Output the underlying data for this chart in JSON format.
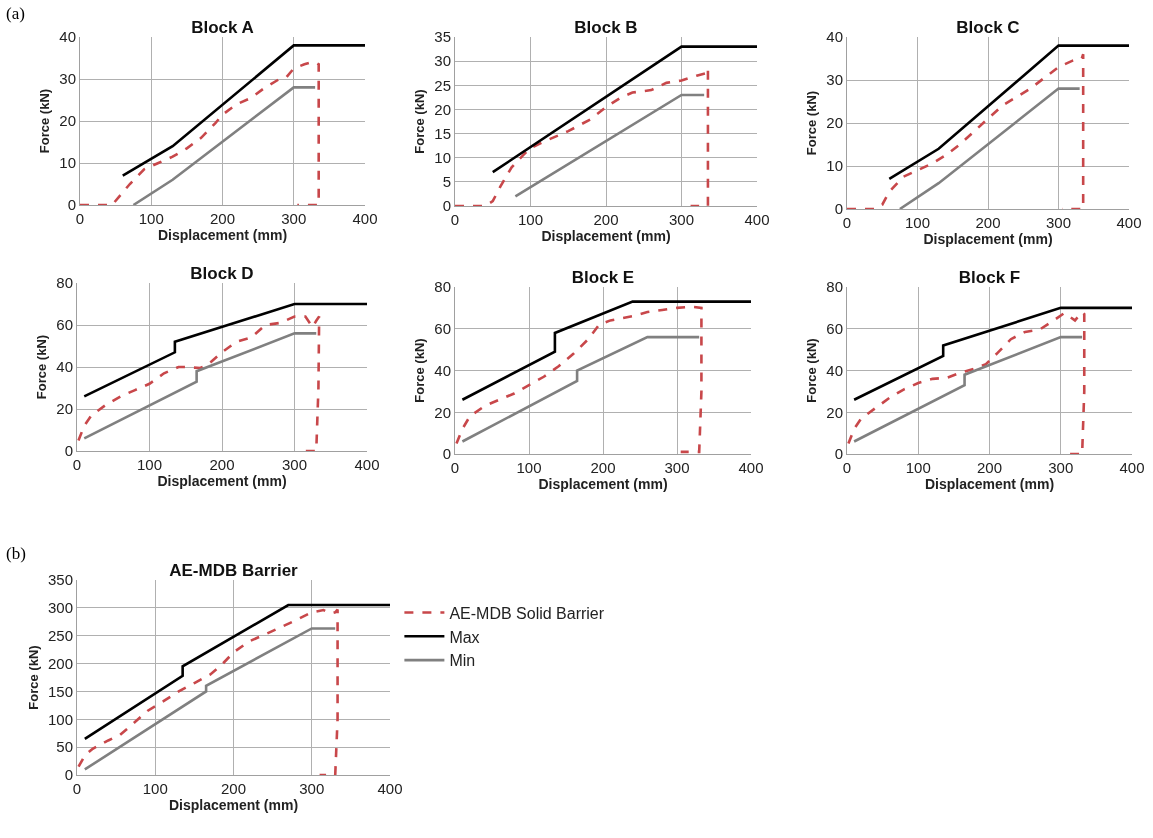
{
  "chart_data": [
    {
      "type": "line",
      "title": "Block A",
      "xlabel": "Displacement (mm)",
      "ylabel": "Force (kN)",
      "annotations": [
        "(a)"
      ],
      "xlim": [
        0,
        400
      ],
      "xticks": [
        0,
        100,
        200,
        300,
        400
      ],
      "ylim": [
        0,
        40
      ],
      "yticks": [
        0,
        10,
        20,
        30,
        40
      ],
      "grid": true,
      "series": [
        {
          "color": "#c8474a",
          "line_style": "dashed",
          "x": [
            0,
            45,
            55,
            70,
            90,
            110,
            130,
            150,
            170,
            190,
            200,
            220,
            240,
            260,
            280,
            290,
            300,
            315,
            325,
            330,
            335,
            335,
            305
          ],
          "values": [
            0,
            0,
            2,
            5,
            8.5,
            10,
            11.5,
            13.5,
            16,
            19.5,
            21.5,
            24,
            25.5,
            28,
            30,
            30.5,
            32.5,
            33.5,
            34,
            34,
            33.5,
            0,
            0
          ]
        },
        {
          "color": "#000000",
          "line_style": "solid",
          "x": [
            60,
            130,
            300,
            400
          ],
          "values": [
            7,
            14,
            38,
            38
          ]
        },
        {
          "color": "#808080",
          "line_style": "solid",
          "x": [
            75,
            130,
            300,
            330
          ],
          "values": [
            0,
            6,
            28,
            28
          ]
        }
      ]
    },
    {
      "type": "line",
      "title": "Block B",
      "xlabel": "Displacement (mm)",
      "ylabel": "Force (kN)",
      "xlim": [
        0,
        400
      ],
      "xticks": [
        0,
        100,
        200,
        300,
        400
      ],
      "ylim": [
        0,
        35
      ],
      "yticks": [
        0,
        5,
        10,
        15,
        20,
        25,
        30,
        35
      ],
      "grid": true,
      "series": [
        {
          "color": "#c8474a",
          "line_style": "dashed",
          "x": [
            0,
            40,
            50,
            60,
            75,
            90,
            100,
            120,
            150,
            180,
            200,
            220,
            235,
            260,
            280,
            300,
            320,
            333,
            335,
            335,
            325,
            312
          ],
          "values": [
            0,
            0,
            1,
            4,
            8,
            10.5,
            12,
            13.5,
            15.5,
            18,
            20.5,
            22.5,
            23.5,
            24,
            25.5,
            26,
            27,
            27.5,
            28.5,
            0,
            0,
            0
          ]
        },
        {
          "color": "#000000",
          "line_style": "solid",
          "x": [
            50,
            300,
            400
          ],
          "values": [
            7,
            33,
            33
          ]
        },
        {
          "color": "#808080",
          "line_style": "solid",
          "x": [
            80,
            300,
            330
          ],
          "values": [
            2,
            23,
            23
          ]
        }
      ]
    },
    {
      "type": "line",
      "title": "Block C",
      "xlabel": "Displacement (mm)",
      "ylabel": "Force (kN)",
      "xlim": [
        0,
        400
      ],
      "xticks": [
        0,
        100,
        200,
        300,
        400
      ],
      "ylim": [
        0,
        40
      ],
      "yticks": [
        0,
        10,
        20,
        30,
        40
      ],
      "grid": true,
      "series": [
        {
          "color": "#c8474a",
          "line_style": "dashed",
          "x": [
            0,
            40,
            50,
            60,
            80,
            100,
            120,
            140,
            160,
            180,
            200,
            220,
            240,
            260,
            280,
            300,
            320,
            333,
            335,
            335,
            320,
            305
          ],
          "values": [
            0,
            0,
            1,
            4,
            7.5,
            9,
            10.5,
            12.5,
            15,
            18,
            21,
            24,
            26,
            28,
            30.5,
            33,
            34.5,
            35,
            36,
            0,
            0,
            0
          ]
        },
        {
          "color": "#000000",
          "line_style": "solid",
          "x": [
            60,
            130,
            300,
            400
          ],
          "values": [
            7,
            14,
            38,
            38
          ]
        },
        {
          "color": "#808080",
          "line_style": "solid",
          "x": [
            75,
            130,
            300,
            330
          ],
          "values": [
            0,
            6,
            28,
            28
          ]
        }
      ]
    },
    {
      "type": "line",
      "title": "Block D",
      "xlabel": "Displacement (mm)",
      "ylabel": "Force (kN)",
      "xlim": [
        0,
        400
      ],
      "xticks": [
        0,
        100,
        200,
        300,
        400
      ],
      "ylim": [
        0,
        80
      ],
      "yticks": [
        0,
        20,
        40,
        60,
        80
      ],
      "grid": true,
      "series": [
        {
          "color": "#c8474a",
          "line_style": "dashed",
          "x": [
            2,
            10,
            20,
            40,
            60,
            80,
            100,
            120,
            140,
            150,
            170,
            180,
            200,
            220,
            240,
            260,
            280,
            300,
            315,
            325,
            330,
            334,
            333,
            330,
            310
          ],
          "values": [
            5,
            12,
            17,
            22,
            26,
            29,
            32,
            37,
            40,
            40,
            39.5,
            41,
            47,
            52,
            54,
            60,
            61,
            64,
            64,
            59,
            62,
            64,
            30,
            0,
            0
          ]
        },
        {
          "color": "#000000",
          "line_style": "solid",
          "x": [
            10,
            135,
            135,
            300,
            400
          ],
          "values": [
            26,
            47,
            52,
            70,
            70
          ]
        },
        {
          "color": "#808080",
          "line_style": "solid",
          "x": [
            10,
            165,
            165,
            300,
            330
          ],
          "values": [
            6,
            33,
            38,
            56,
            56
          ]
        }
      ]
    },
    {
      "type": "line",
      "title": "Block E",
      "xlabel": "Displacement (mm)",
      "ylabel": "Force (kN)",
      "xlim": [
        0,
        400
      ],
      "xticks": [
        0,
        100,
        200,
        300,
        400
      ],
      "ylim": [
        0,
        80
      ],
      "yticks": [
        0,
        20,
        40,
        60,
        80
      ],
      "grid": true,
      "series": [
        {
          "color": "#c8474a",
          "line_style": "dashed",
          "x": [
            2,
            10,
            20,
            40,
            60,
            80,
            100,
            120,
            140,
            160,
            180,
            195,
            210,
            240,
            260,
            280,
            300,
            320,
            333,
            333,
            330,
            305
          ],
          "values": [
            5,
            12,
            18,
            23,
            26,
            29,
            33,
            37,
            42,
            48,
            55,
            62,
            64,
            66,
            68,
            69,
            70,
            70.5,
            70,
            30,
            1,
            1
          ]
        },
        {
          "color": "#000000",
          "line_style": "solid",
          "x": [
            10,
            135,
            135,
            240,
            400
          ],
          "values": [
            26,
            49,
            58,
            73,
            73
          ]
        },
        {
          "color": "#808080",
          "line_style": "solid",
          "x": [
            10,
            165,
            165,
            260,
            330
          ],
          "values": [
            6,
            35,
            40,
            56,
            56
          ]
        }
      ]
    },
    {
      "type": "line",
      "title": "Block F",
      "xlabel": "Displacement (mm)",
      "ylabel": "Force (kN)",
      "xlim": [
        0,
        400
      ],
      "xticks": [
        0,
        100,
        200,
        300,
        400
      ],
      "ylim": [
        0,
        80
      ],
      "yticks": [
        0,
        20,
        40,
        60,
        80
      ],
      "grid": true,
      "series": [
        {
          "color": "#c8474a",
          "line_style": "dashed",
          "x": [
            2,
            10,
            20,
            40,
            60,
            80,
            100,
            120,
            140,
            160,
            180,
            195,
            210,
            230,
            250,
            270,
            290,
            305,
            320,
            330,
            333,
            333,
            330,
            310
          ],
          "values": [
            5,
            12,
            17,
            22,
            27,
            31,
            34,
            36,
            36.5,
            39,
            41,
            43,
            48,
            55,
            58.5,
            59.5,
            64,
            67.5,
            64,
            68,
            67,
            30,
            0,
            0
          ]
        },
        {
          "color": "#000000",
          "line_style": "solid",
          "x": [
            10,
            135,
            135,
            300,
            400
          ],
          "values": [
            26,
            47,
            52,
            70,
            70
          ]
        },
        {
          "color": "#808080",
          "line_style": "solid",
          "x": [
            10,
            165,
            165,
            300,
            330
          ],
          "values": [
            6,
            33,
            38,
            56,
            56
          ]
        }
      ]
    },
    {
      "type": "line",
      "title": "AE-MDB Barrier",
      "xlabel": "Displacement (mm)",
      "ylabel": "Force (kN)",
      "annotations": [
        "(b)"
      ],
      "xlim": [
        0,
        400
      ],
      "xticks": [
        0,
        100,
        200,
        300,
        400
      ],
      "ylim": [
        0,
        350
      ],
      "yticks": [
        0,
        50,
        100,
        150,
        200,
        250,
        300,
        350
      ],
      "grid": true,
      "legend": "right",
      "series": [
        {
          "name": "AE-MDB Solid Barrier",
          "color": "#c8474a",
          "line_style": "dashed",
          "x": [
            2,
            10,
            20,
            40,
            55,
            70,
            90,
            110,
            130,
            150,
            170,
            185,
            200,
            220,
            240,
            260,
            280,
            300,
            315,
            325,
            330,
            333,
            333,
            330,
            310
          ],
          "values": [
            15,
            35,
            47,
            62,
            72,
            90,
            115,
            132,
            150,
            165,
            180,
            198,
            220,
            240,
            252,
            265,
            278,
            292,
            296,
            290,
            292,
            297,
            100,
            0,
            0
          ]
        },
        {
          "name": "Max",
          "color": "#000000",
          "line_style": "solid",
          "x": [
            10,
            135,
            135,
            270,
            400
          ],
          "values": [
            65,
            178,
            195,
            305,
            305
          ]
        },
        {
          "name": "Min",
          "color": "#808080",
          "line_style": "solid",
          "x": [
            10,
            165,
            165,
            300,
            330
          ],
          "values": [
            10,
            150,
            160,
            263,
            263
          ]
        }
      ]
    }
  ]
}
